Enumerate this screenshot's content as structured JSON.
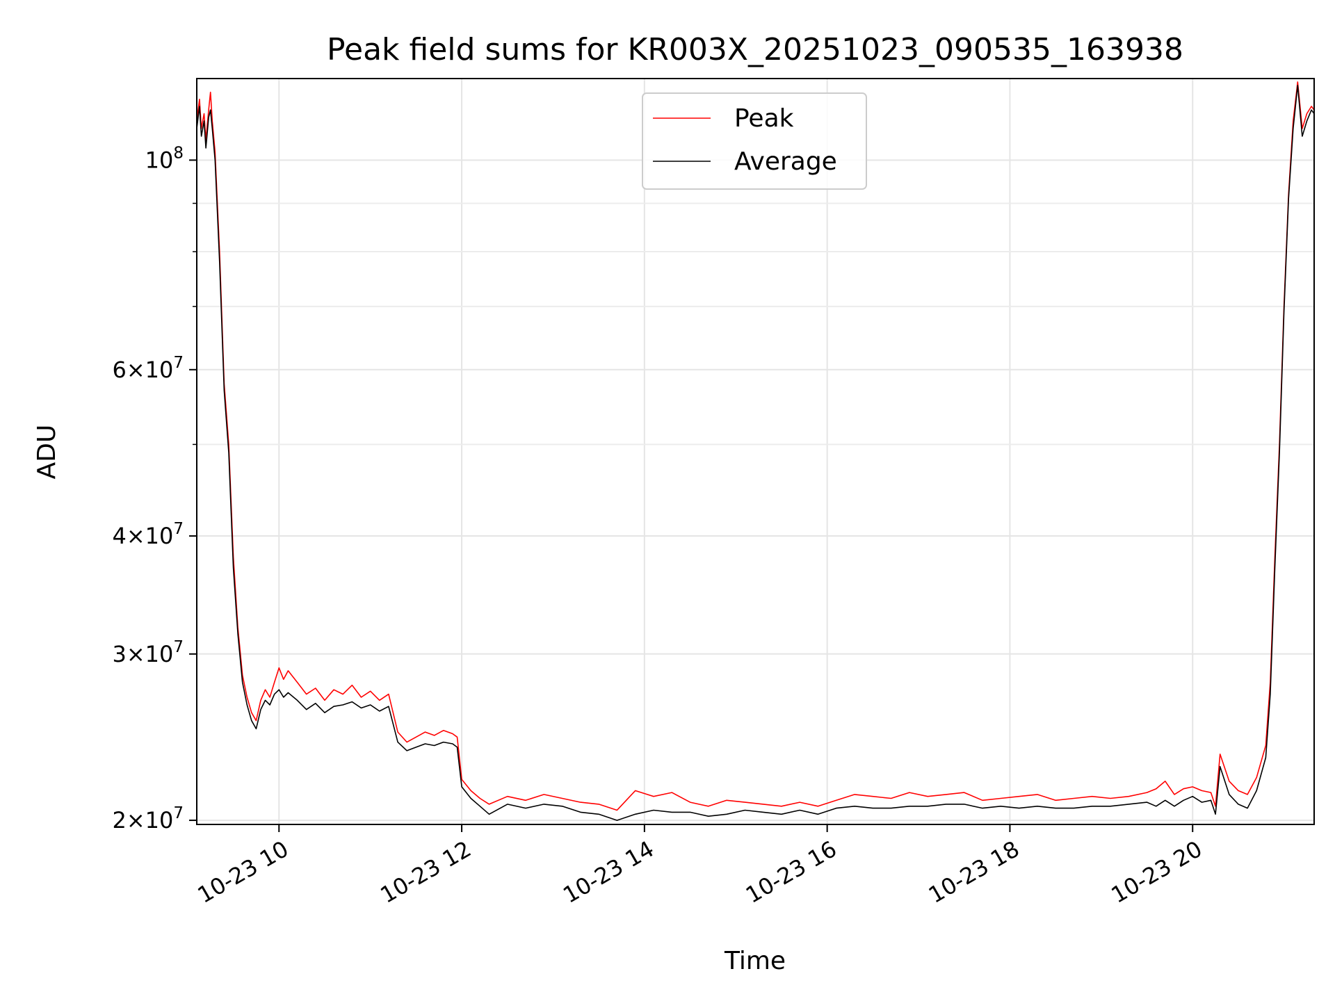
{
  "chart_data": {
    "type": "line",
    "title": "Peak field sums for KR003X_20251023_090535_163938",
    "xlabel": "Time",
    "ylabel": "ADU",
    "yscale": "log",
    "xlim": [
      9.1,
      21.33
    ],
    "ylim": [
      19800000,
      122000000
    ],
    "grid": true,
    "legend_position": "top-center",
    "x_ticks": [
      {
        "value": 10,
        "label": "10-23 10"
      },
      {
        "value": 12,
        "label": "10-23 12"
      },
      {
        "value": 14,
        "label": "10-23 14"
      },
      {
        "value": 16,
        "label": "10-23 16"
      },
      {
        "value": 18,
        "label": "10-23 18"
      },
      {
        "value": 20,
        "label": "10-23 20"
      }
    ],
    "y_ticks": [
      {
        "value": 20000000,
        "mantissa": "2",
        "exponent": "7"
      },
      {
        "value": 30000000,
        "mantissa": "3",
        "exponent": "7"
      },
      {
        "value": 40000000,
        "mantissa": "4",
        "exponent": "7"
      },
      {
        "value": 60000000,
        "mantissa": "6",
        "exponent": "7"
      },
      {
        "value": 100000000,
        "mantissa": "",
        "exponent": "8"
      }
    ],
    "y_minor_ticks": [
      50000000,
      70000000,
      80000000,
      90000000
    ],
    "x_minor_ticks": [],
    "series": [
      {
        "name": "Peak",
        "color": "#ff0000",
        "x": [
          9.1,
          9.13,
          9.15,
          9.18,
          9.2,
          9.23,
          9.25,
          9.27,
          9.3,
          9.35,
          9.4,
          9.45,
          9.5,
          9.55,
          9.6,
          9.65,
          9.7,
          9.75,
          9.8,
          9.85,
          9.9,
          9.95,
          10.0,
          10.05,
          10.1,
          10.2,
          10.3,
          10.4,
          10.5,
          10.6,
          10.7,
          10.8,
          10.9,
          11.0,
          11.1,
          11.2,
          11.3,
          11.4,
          11.5,
          11.6,
          11.7,
          11.8,
          11.9,
          11.95,
          12.0,
          12.1,
          12.2,
          12.3,
          12.5,
          12.7,
          12.9,
          13.1,
          13.3,
          13.5,
          13.7,
          13.9,
          14.1,
          14.3,
          14.5,
          14.7,
          14.9,
          15.1,
          15.3,
          15.5,
          15.7,
          15.9,
          16.1,
          16.3,
          16.5,
          16.7,
          16.9,
          17.1,
          17.3,
          17.5,
          17.7,
          17.9,
          18.1,
          18.3,
          18.5,
          18.7,
          18.9,
          19.1,
          19.3,
          19.5,
          19.6,
          19.7,
          19.8,
          19.9,
          20.0,
          20.1,
          20.2,
          20.25,
          20.3,
          20.4,
          20.5,
          20.6,
          20.7,
          20.8,
          20.85,
          20.9,
          20.95,
          21.0,
          21.05,
          21.1,
          21.15,
          21.2,
          21.25,
          21.3,
          21.33
        ],
        "y": [
          110000000,
          116000000,
          108000000,
          112000000,
          105000000,
          113000000,
          118000000,
          110000000,
          102000000,
          80000000,
          58000000,
          50000000,
          38000000,
          32000000,
          28500000,
          27000000,
          26000000,
          25500000,
          26800000,
          27500000,
          27000000,
          28000000,
          29000000,
          28200000,
          28800000,
          28000000,
          27200000,
          27600000,
          26800000,
          27500000,
          27200000,
          27800000,
          27000000,
          27400000,
          26800000,
          27200000,
          24800000,
          24200000,
          24500000,
          24800000,
          24600000,
          24900000,
          24700000,
          24500000,
          22100000,
          21500000,
          21100000,
          20800000,
          21200000,
          21000000,
          21300000,
          21100000,
          20900000,
          20800000,
          20500000,
          21500000,
          21200000,
          21400000,
          20900000,
          20700000,
          21000000,
          20900000,
          20800000,
          20700000,
          20900000,
          20700000,
          21000000,
          21300000,
          21200000,
          21100000,
          21400000,
          21200000,
          21300000,
          21400000,
          21000000,
          21100000,
          21200000,
          21300000,
          21000000,
          21100000,
          21200000,
          21100000,
          21200000,
          21400000,
          21600000,
          22000000,
          21300000,
          21600000,
          21700000,
          21500000,
          21400000,
          20700000,
          23500000,
          22000000,
          21500000,
          21300000,
          22200000,
          24000000,
          28000000,
          38000000,
          50000000,
          70000000,
          92000000,
          110000000,
          121000000,
          108000000,
          112000000,
          114000000,
          113000000
        ]
      },
      {
        "name": "Average",
        "color": "#000000",
        "x": [
          9.1,
          9.13,
          9.15,
          9.18,
          9.2,
          9.23,
          9.25,
          9.27,
          9.3,
          9.35,
          9.4,
          9.45,
          9.5,
          9.55,
          9.6,
          9.65,
          9.7,
          9.75,
          9.8,
          9.85,
          9.9,
          9.95,
          10.0,
          10.05,
          10.1,
          10.2,
          10.3,
          10.4,
          10.5,
          10.6,
          10.7,
          10.8,
          10.9,
          11.0,
          11.1,
          11.2,
          11.3,
          11.4,
          11.5,
          11.6,
          11.7,
          11.8,
          11.9,
          11.95,
          12.0,
          12.1,
          12.2,
          12.3,
          12.5,
          12.7,
          12.9,
          13.1,
          13.3,
          13.5,
          13.7,
          13.9,
          14.1,
          14.3,
          14.5,
          14.7,
          14.9,
          15.1,
          15.3,
          15.5,
          15.7,
          15.9,
          16.1,
          16.3,
          16.5,
          16.7,
          16.9,
          17.1,
          17.3,
          17.5,
          17.7,
          17.9,
          18.1,
          18.3,
          18.5,
          18.7,
          18.9,
          19.1,
          19.3,
          19.5,
          19.6,
          19.7,
          19.8,
          19.9,
          20.0,
          20.1,
          20.2,
          20.25,
          20.3,
          20.4,
          20.5,
          20.6,
          20.7,
          20.8,
          20.85,
          20.9,
          20.95,
          21.0,
          21.05,
          21.1,
          21.15,
          21.2,
          21.25,
          21.3,
          21.33
        ],
        "y": [
          108000000,
          114000000,
          106000000,
          110000000,
          103000000,
          111000000,
          113000000,
          108000000,
          100000000,
          78000000,
          57000000,
          49000000,
          37000000,
          31500000,
          28000000,
          26500000,
          25500000,
          25000000,
          26200000,
          26800000,
          26500000,
          27200000,
          27500000,
          27000000,
          27300000,
          26800000,
          26200000,
          26600000,
          26000000,
          26400000,
          26500000,
          26700000,
          26300000,
          26500000,
          26100000,
          26400000,
          24200000,
          23700000,
          23900000,
          24100000,
          24000000,
          24200000,
          24100000,
          23900000,
          21700000,
          21100000,
          20700000,
          20300000,
          20800000,
          20600000,
          20800000,
          20700000,
          20400000,
          20300000,
          20000000,
          20300000,
          20500000,
          20400000,
          20400000,
          20200000,
          20300000,
          20500000,
          20400000,
          20300000,
          20500000,
          20300000,
          20600000,
          20700000,
          20600000,
          20600000,
          20700000,
          20700000,
          20800000,
          20800000,
          20600000,
          20700000,
          20600000,
          20700000,
          20600000,
          20600000,
          20700000,
          20700000,
          20800000,
          20900000,
          20700000,
          21000000,
          20700000,
          21000000,
          21200000,
          20900000,
          21000000,
          20300000,
          22800000,
          21300000,
          20800000,
          20600000,
          21500000,
          23300000,
          27200000,
          37000000,
          49000000,
          69000000,
          91000000,
          108000000,
          120000000,
          106000000,
          110000000,
          113000000,
          112000000
        ]
      }
    ]
  }
}
